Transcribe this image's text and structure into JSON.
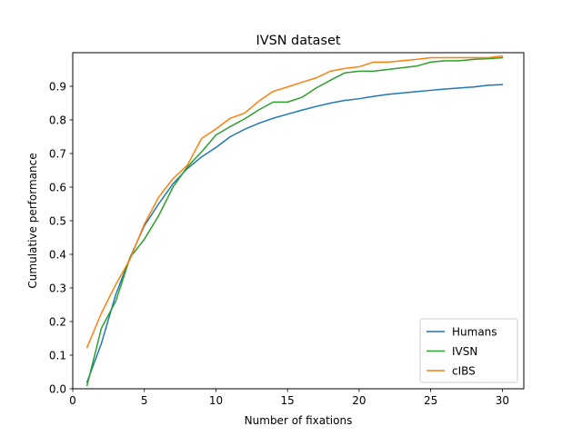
{
  "chart_data": {
    "type": "line",
    "title": "IVSN dataset",
    "xlabel": "Number of fixations",
    "ylabel": "Cumulative performance",
    "xlim": [
      0,
      31.5
    ],
    "ylim": [
      0,
      1.0
    ],
    "xticks": [
      0,
      5,
      10,
      15,
      20,
      25,
      30
    ],
    "yticks": [
      0.0,
      0.1,
      0.2,
      0.3,
      0.4,
      0.5,
      0.6,
      0.7,
      0.8,
      0.9
    ],
    "xtick_labels": [
      "0",
      "5",
      "10",
      "15",
      "20",
      "25",
      "30"
    ],
    "ytick_labels": [
      "0.0",
      "0.1",
      "0.2",
      "0.3",
      "0.4",
      "0.5",
      "0.6",
      "0.7",
      "0.8",
      "0.9"
    ],
    "grid": false,
    "legend_position": "lower-right",
    "x": [
      1,
      2,
      3,
      4,
      5,
      6,
      7,
      8,
      9,
      10,
      11,
      12,
      13,
      14,
      15,
      16,
      17,
      18,
      19,
      20,
      21,
      22,
      23,
      24,
      25,
      26,
      27,
      28,
      29,
      30
    ],
    "series": [
      {
        "name": "Humans",
        "color": "#1f77b4",
        "values": [
          0.02,
          0.135,
          0.28,
          0.39,
          0.485,
          0.55,
          0.61,
          0.655,
          0.69,
          0.718,
          0.75,
          0.772,
          0.79,
          0.805,
          0.817,
          0.829,
          0.84,
          0.85,
          0.858,
          0.863,
          0.87,
          0.876,
          0.88,
          0.884,
          0.888,
          0.892,
          0.895,
          0.898,
          0.903,
          0.905
        ]
      },
      {
        "name": "IVSN",
        "color": "#2ca02c",
        "values": [
          0.01,
          0.18,
          0.26,
          0.39,
          0.445,
          0.515,
          0.6,
          0.66,
          0.705,
          0.755,
          0.78,
          0.803,
          0.83,
          0.853,
          0.853,
          0.867,
          0.895,
          0.918,
          0.94,
          0.945,
          0.945,
          0.95,
          0.955,
          0.96,
          0.972,
          0.976,
          0.976,
          0.98,
          0.982,
          0.985
        ]
      },
      {
        "name": "cIBS",
        "color": "#ff7f0e",
        "values": [
          0.123,
          0.225,
          0.31,
          0.385,
          0.49,
          0.57,
          0.625,
          0.665,
          0.745,
          0.773,
          0.805,
          0.82,
          0.856,
          0.885,
          0.898,
          0.912,
          0.925,
          0.945,
          0.953,
          0.958,
          0.972,
          0.972,
          0.976,
          0.98,
          0.985,
          0.985,
          0.985,
          0.985,
          0.985,
          0.99
        ]
      }
    ]
  }
}
